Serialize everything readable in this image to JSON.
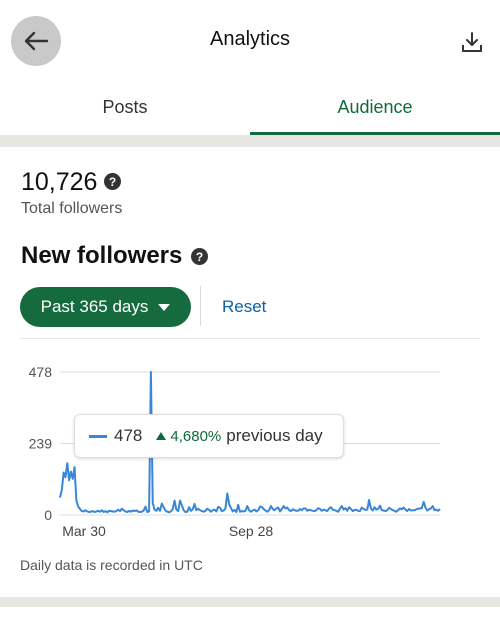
{
  "header": {
    "title": "Analytics"
  },
  "tabs": [
    {
      "label": "Posts"
    },
    {
      "label": "Audience"
    }
  ],
  "summary": {
    "total_followers": "10,726",
    "total_label": "Total followers"
  },
  "new_followers": {
    "title": "New followers",
    "range_label": "Past 365 days",
    "reset_label": "Reset"
  },
  "tooltip": {
    "value": "478",
    "change": "4,680%",
    "suffix": "previous day"
  },
  "note": "Daily data is recorded in UTC",
  "colors": {
    "accent": "#0f6b3e",
    "line": "#3a86d6",
    "link": "#0b62a8"
  },
  "chart_data": {
    "type": "line",
    "title": "",
    "xlabel": "",
    "ylabel": "",
    "y_ticks": [
      0,
      239,
      478
    ],
    "ylim": [
      0,
      478
    ],
    "x_tick_labels": [
      "Mar 30",
      "Sep 28"
    ],
    "grid": true,
    "series": [
      {
        "values": [
          58,
          84,
          142,
          126,
          173,
          116,
          145,
          121,
          160,
          49,
          28,
          20,
          13,
          12,
          16,
          12,
          10,
          11,
          13,
          10,
          12,
          14,
          11,
          16,
          10,
          13,
          9,
          14,
          13,
          12,
          11,
          13,
          18,
          13,
          21,
          16,
          12,
          10,
          14,
          11,
          15,
          13,
          16,
          11,
          10,
          11,
          15,
          28,
          10,
          12,
          478,
          40,
          18,
          14,
          24,
          14,
          38,
          26,
          15,
          11,
          9,
          12,
          20,
          48,
          18,
          13,
          48,
          33,
          16,
          10,
          11,
          26,
          14,
          19,
          37,
          16,
          21,
          16,
          13,
          11,
          14,
          21,
          17,
          11,
          16,
          18,
          12,
          27,
          24,
          13,
          15,
          22,
          72,
          37,
          24,
          12,
          17,
          10,
          34,
          11,
          13,
          12,
          14,
          30,
          16,
          11,
          15,
          18,
          12,
          16,
          28,
          27,
          20,
          15,
          11,
          16,
          30,
          20,
          16,
          22,
          25,
          12,
          20,
          30,
          22,
          25,
          16,
          13,
          19,
          16,
          14,
          14,
          20,
          16,
          22,
          22,
          14,
          18,
          16,
          14,
          13,
          16,
          23,
          20,
          14,
          18,
          16,
          13,
          22,
          26,
          18,
          16,
          14,
          11,
          22,
          30,
          18,
          23,
          14,
          26,
          20,
          13,
          17,
          17,
          14,
          13,
          25,
          20,
          17,
          18,
          50,
          22,
          15,
          26,
          18,
          21,
          31,
          16,
          15,
          13,
          16,
          24,
          20,
          16,
          14,
          11,
          17,
          22,
          19,
          25,
          18,
          13,
          20,
          15,
          16,
          16,
          19,
          21,
          22,
          23,
          44,
          25,
          15,
          19,
          22,
          30,
          16,
          18,
          14,
          20
        ]
      }
    ]
  }
}
